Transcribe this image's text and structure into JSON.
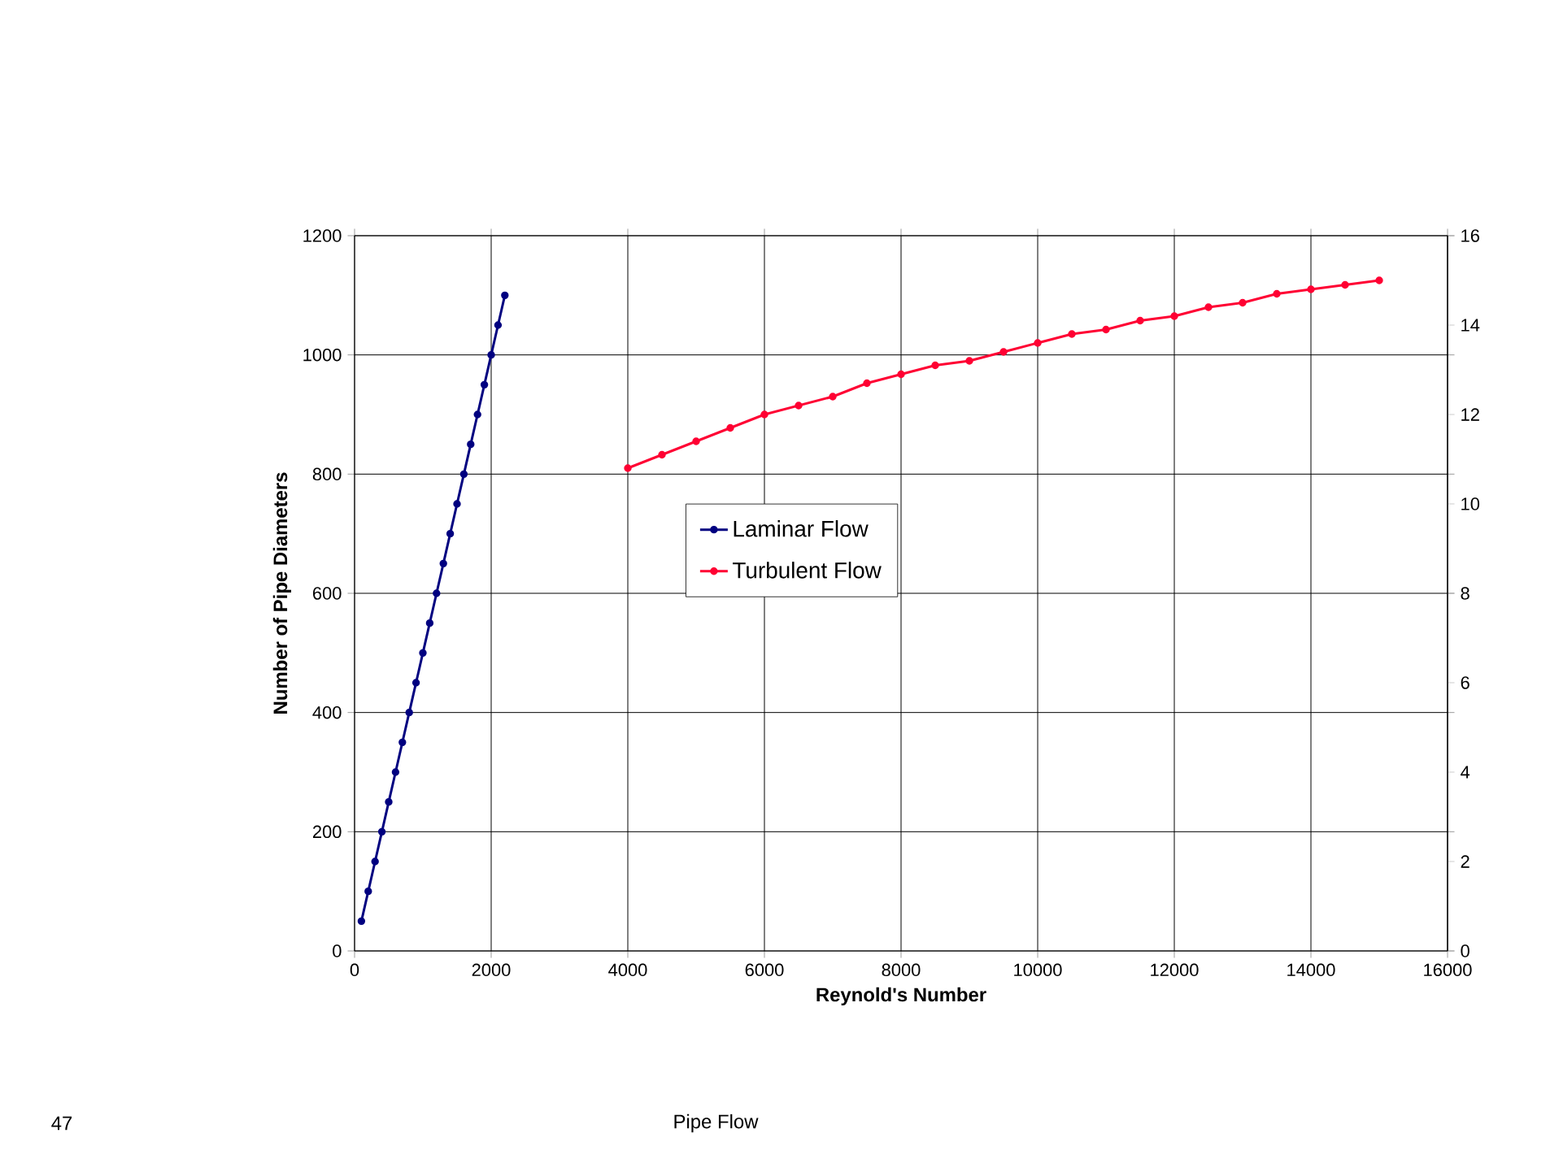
{
  "chart_data": {
    "type": "line",
    "xlabel": "Reynold's Number",
    "ylabel": "Number of Pipe Diameters",
    "x": [
      100,
      200,
      300,
      400,
      500,
      600,
      700,
      800,
      900,
      1000,
      1100,
      1200,
      1300,
      1400,
      1500,
      1600,
      1700,
      1800,
      1900,
      2000,
      2100,
      2200
    ],
    "series": [
      {
        "name": "Laminar Flow",
        "color": "#000080",
        "values": [
          50,
          100,
          150,
          200,
          250,
          300,
          350,
          400,
          450,
          500,
          550,
          600,
          650,
          700,
          750,
          800,
          850,
          900,
          950,
          1000,
          1050,
          1100
        ]
      },
      {
        "name": "Turbulent Flow",
        "color": "#ff0033",
        "axis": "y2",
        "x": [
          4000,
          4500,
          5000,
          5500,
          6000,
          6500,
          7000,
          7500,
          8000,
          8500,
          9000,
          9500,
          10000,
          10500,
          11000,
          11500,
          12000,
          12500,
          13000,
          13500,
          14000,
          14500,
          15000
        ],
        "values": [
          10.8,
          11.1,
          11.4,
          11.7,
          12.0,
          12.2,
          12.4,
          12.7,
          12.9,
          13.1,
          13.2,
          13.4,
          13.6,
          13.8,
          13.9,
          14.1,
          14.2,
          14.4,
          14.5,
          14.7,
          14.8,
          14.9,
          15.0
        ]
      }
    ],
    "xlim": [
      0,
      16000
    ],
    "xticks": [
      0,
      2000,
      4000,
      6000,
      8000,
      10000,
      12000,
      14000,
      16000
    ],
    "ylim": [
      0,
      1200
    ],
    "yticks": [
      0,
      200,
      400,
      600,
      800,
      1000,
      1200
    ],
    "y2lim": [
      0,
      16
    ],
    "y2ticks": [
      0,
      2,
      4,
      6,
      8,
      10,
      12,
      14,
      16
    ],
    "grid": true,
    "legend": "center",
    "marker": "circle",
    "line_style": "solid",
    "annotations": [
      "47",
      "Pipe Flow"
    ]
  }
}
